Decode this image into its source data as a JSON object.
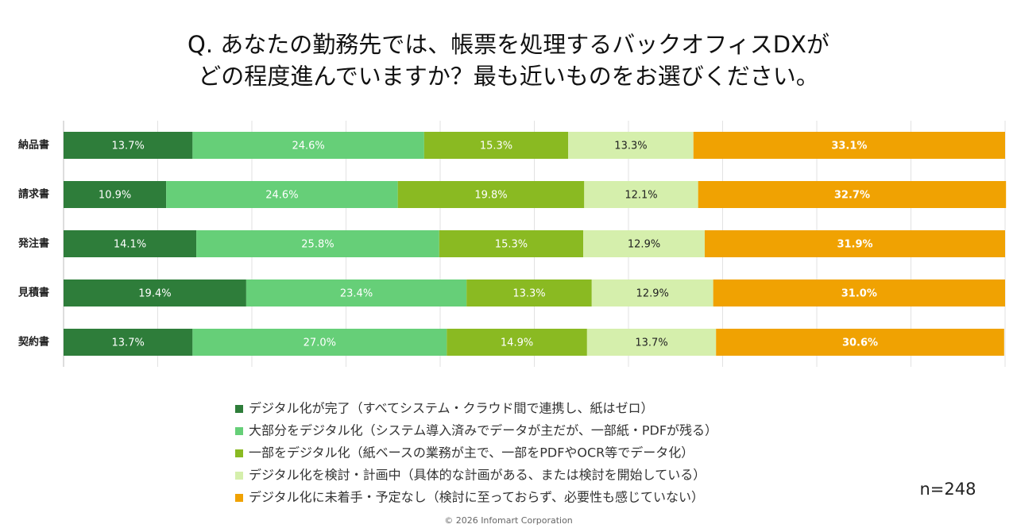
{
  "chart_data": {
    "type": "stacked_bar_horizontal",
    "title": [
      "Q. あなたの勤務先では、帳票を処理するバックオフィスDXが",
      "どの程度進んでいますか？最も近いものをお選びください。"
    ],
    "categories": [
      "納品書",
      "請求書",
      "発注書",
      "見積書",
      "契約書"
    ],
    "series": [
      {
        "name": "デジタル化が完了（すべてシステム・クラウド間で連携し、紙はゼロ）",
        "color": "#2e7d3a",
        "label_color": "#ffffff",
        "values": [
          13.7,
          10.9,
          14.1,
          19.4,
          13.7
        ],
        "value_labels": [
          "13.7%",
          "10.9%",
          "14.1%",
          "19.4%",
          "13.7%"
        ]
      },
      {
        "name": "大部分をデジタル化（システム導入済みでデータが主だが、一部紙・PDFが残る）",
        "color": "#66cf78",
        "label_color": "#ffffff",
        "values": [
          24.6,
          24.6,
          25.8,
          23.4,
          27.0
        ],
        "value_labels": [
          "24.6%",
          "24.6%",
          "25.8%",
          "23.4%",
          "27.0%"
        ]
      },
      {
        "name": "一部をデジタル化（紙ベースの業務が主で、一部をPDFやOCR等でデータ化）",
        "color": "#8aba22",
        "label_color": "#ffffff",
        "values": [
          15.3,
          19.8,
          15.3,
          13.3,
          14.9
        ],
        "value_labels": [
          "15.3%",
          "19.8%",
          "15.3%",
          "13.3%",
          "14.9%"
        ]
      },
      {
        "name": "デジタル化を検討・計画中（具体的な計画がある、または検討を開始している）",
        "color": "#d5efac",
        "label_color": "#222222",
        "values": [
          13.3,
          12.1,
          12.9,
          12.9,
          13.7
        ],
        "value_labels": [
          "13.3%",
          "12.1%",
          "12.9%",
          "12.9%",
          "13.7%"
        ]
      },
      {
        "name": "デジタル化に未着手・予定なし（検討に至っておらず、必要性も感じていない）",
        "color": "#f0a202",
        "label_color": "#ffffff",
        "values": [
          33.1,
          32.7,
          31.9,
          31.0,
          30.6
        ],
        "value_labels": [
          "33.1%",
          "32.7%",
          "31.9%",
          "31.0%",
          "30.6%"
        ]
      }
    ],
    "xlim": [
      0,
      100
    ],
    "xticks": [
      10,
      20,
      30,
      40,
      50,
      60,
      70,
      80,
      90,
      100
    ],
    "grid": true,
    "sample_size": "n=248",
    "footer": "© 2026 Infomart Corporation"
  }
}
